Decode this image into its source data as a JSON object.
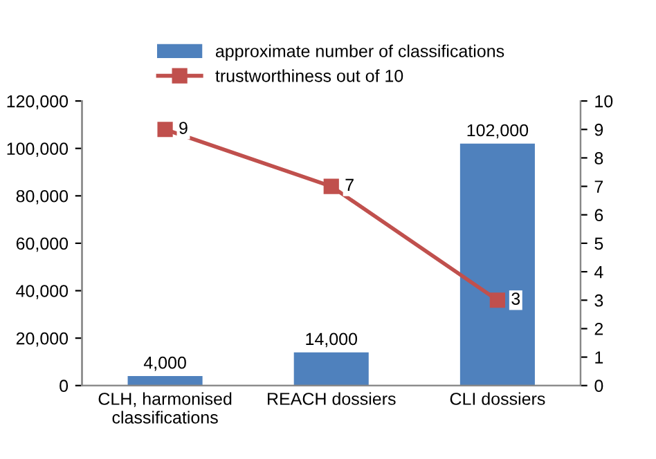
{
  "chart_data": {
    "type": "bar",
    "categories": [
      "CLH, harmonised\nclassifications",
      "REACH dossiers",
      "CLI dossiers"
    ],
    "series": [
      {
        "name": "approximate number of classifications",
        "color": "#4f81bd",
        "values": [
          4000,
          14000,
          102000
        ]
      },
      {
        "name": "trustworthiness out of 10",
        "type": "line",
        "axis": "y2",
        "color": "#c0504d",
        "marker": "square",
        "values": [
          9,
          7,
          3
        ]
      }
    ],
    "ylim": [
      0,
      120000
    ],
    "yticks": [
      {
        "value": 0,
        "label": "0"
      },
      {
        "value": 20000,
        "label": "20,000"
      },
      {
        "value": 40000,
        "label": "40,000"
      },
      {
        "value": 60000,
        "label": "60,000"
      },
      {
        "value": 80000,
        "label": "80,000"
      },
      {
        "value": 100000,
        "label": "100,000"
      },
      {
        "value": 120000,
        "label": "120,000"
      }
    ],
    "y2lim": [
      0,
      10
    ],
    "y2ticks": [
      0,
      1,
      2,
      3,
      4,
      5,
      6,
      7,
      8,
      9,
      10
    ],
    "value_labels": [
      [
        "4,000",
        "14,000",
        "102,000"
      ],
      [
        "9",
        "7",
        "3"
      ]
    ],
    "legend": "top",
    "grid": false
  }
}
